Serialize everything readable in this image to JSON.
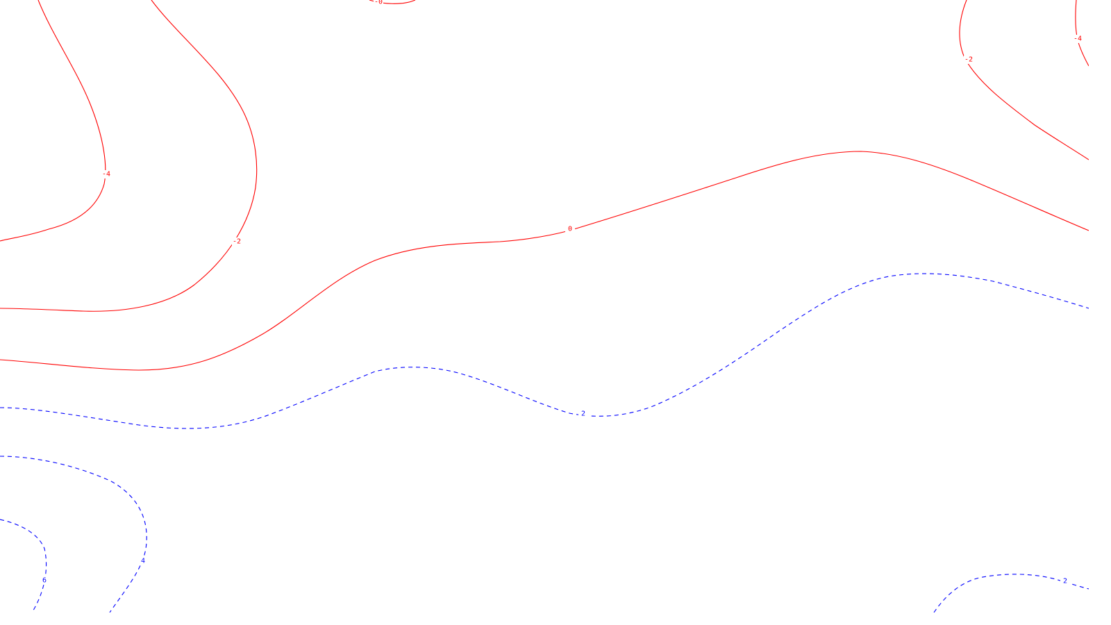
{
  "chart_data": {
    "type": "contour",
    "title": "",
    "xlabel": "",
    "ylabel": "",
    "legend": "none",
    "grid": false,
    "line_styles": {
      "negative": "solid",
      "positive": "dashed",
      "zero": "solid"
    },
    "colors": {
      "negative": "#ff0000",
      "zero": "#ff0000",
      "positive": "#0000ff",
      "background": "#ffffff"
    },
    "contour_levels": [
      -4,
      -2,
      0,
      2,
      4,
      6
    ],
    "contour_labels": [
      {
        "text": "-4",
        "level": -4
      },
      {
        "text": "-2",
        "level": -2
      },
      {
        "text": "-4",
        "level": -4
      },
      {
        "text": "-2",
        "level": -2
      },
      {
        "text": "0",
        "level": 0
      },
      {
        "text": "-0",
        "level": 0
      },
      {
        "text": "2",
        "level": 2
      },
      {
        "text": "4",
        "level": 4
      },
      {
        "text": "6",
        "level": 6
      },
      {
        "text": "2",
        "level": 2
      }
    ]
  }
}
